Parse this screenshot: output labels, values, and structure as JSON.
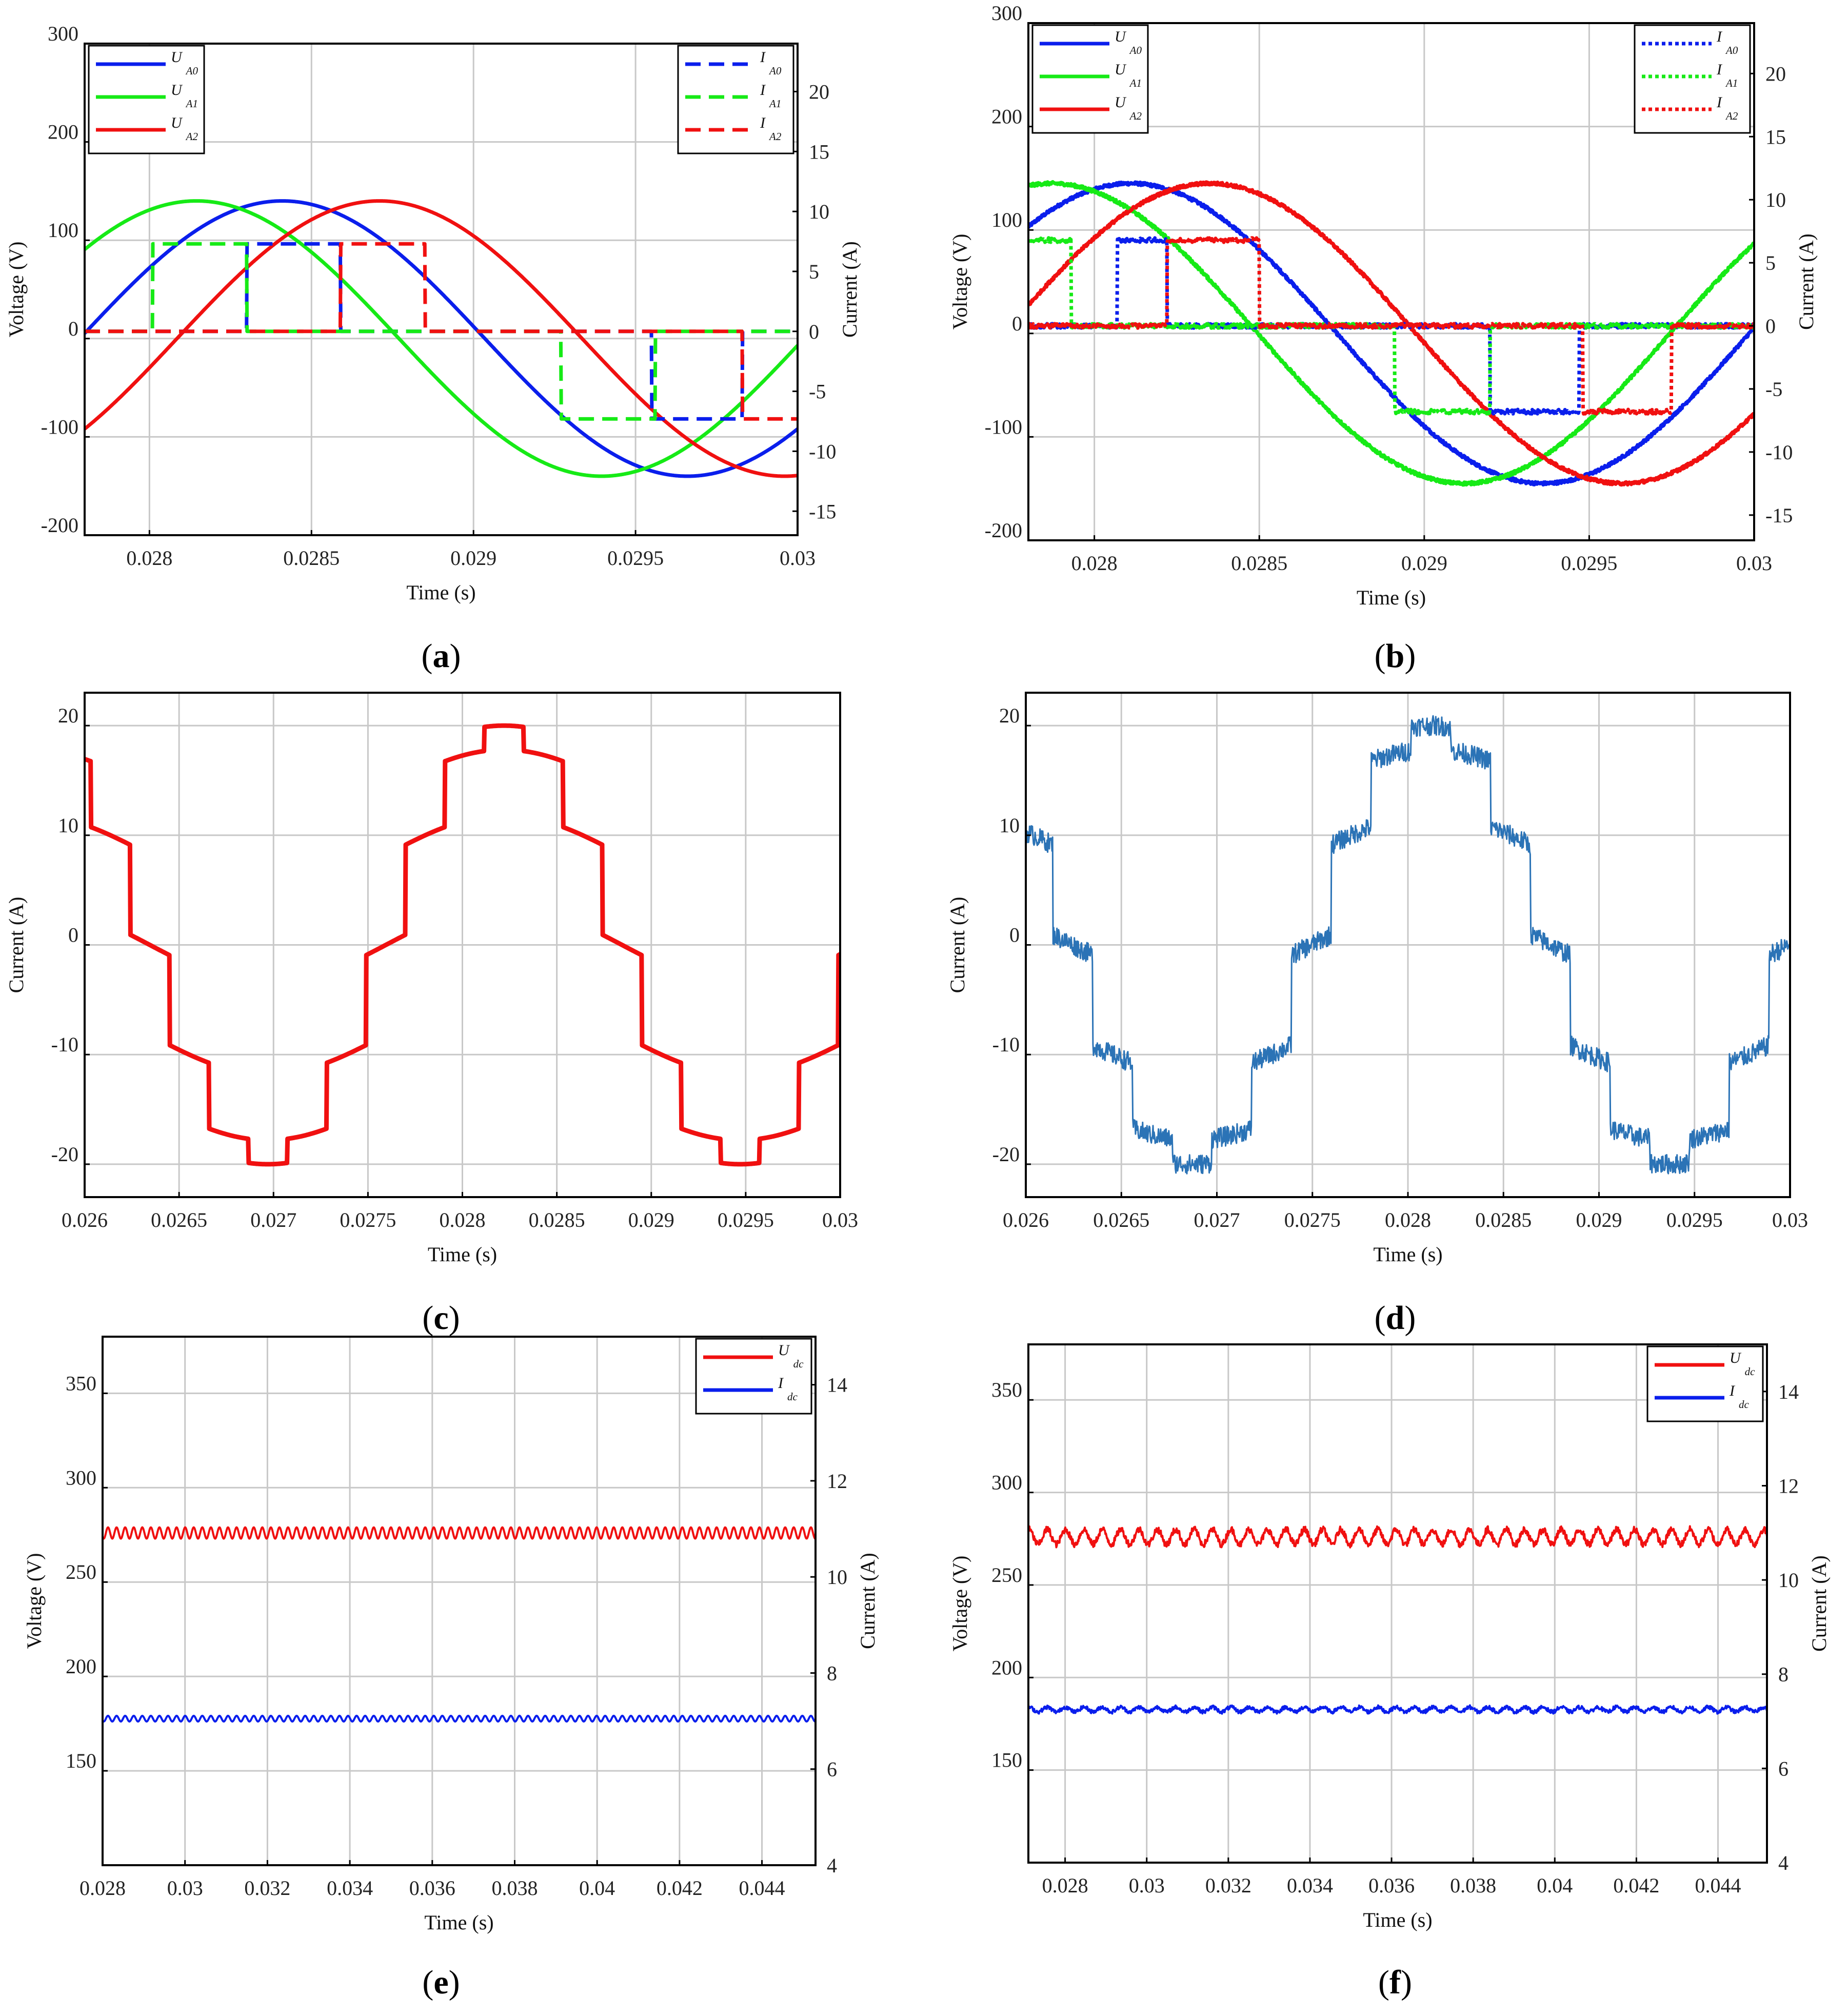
{
  "captions": [
    "a",
    "b",
    "c",
    "d",
    "e",
    "f"
  ],
  "colors": {
    "blue": "#0a1eec",
    "green": "#16ea16",
    "red": "#f01010",
    "steel": "#2b73b6",
    "grid": "#c8c8c8"
  },
  "chart_data": [
    {
      "panel": "a",
      "type": "line",
      "xlabel": "Time (s)",
      "ylabel": "Voltage (V)",
      "y2label": "Current (A)",
      "xlim": [
        0.0278,
        0.03
      ],
      "ylim": [
        -200,
        300
      ],
      "y2lim": [
        -17,
        24
      ],
      "xticks": [
        0.028,
        0.0285,
        0.029,
        0.0295,
        0.03
      ],
      "xtick_labels": [
        "0.028",
        "0.0285",
        "0.029",
        "0.0295",
        "0.03"
      ],
      "yticks": [
        -200,
        -100,
        0,
        100,
        200,
        300
      ],
      "ytick_labels": [
        "-200",
        "-100",
        "0",
        "100",
        "200",
        "300"
      ],
      "y2ticks": [
        -15,
        -10,
        -5,
        0,
        5,
        10,
        15,
        20
      ],
      "y2tick_labels": [
        "-15",
        "-10",
        "-5",
        "0",
        "5",
        "10",
        "15",
        "20"
      ],
      "legend_left": [
        {
          "sym": "U",
          "sub": "A0",
          "color": "blue",
          "style": "solid"
        },
        {
          "sym": "U",
          "sub": "A1",
          "color": "green",
          "style": "solid"
        },
        {
          "sym": "U",
          "sub": "A2",
          "color": "red",
          "style": "solid"
        }
      ],
      "legend_right": [
        {
          "sym": "I",
          "sub": "A0",
          "color": "blue",
          "style": "dashed"
        },
        {
          "sym": "I",
          "sub": "A1",
          "color": "green",
          "style": "dashed"
        },
        {
          "sym": "I",
          "sub": "A2",
          "color": "red",
          "style": "dashed"
        }
      ],
      "series": [
        {
          "name": "UA0",
          "axis": "left",
          "color": "blue",
          "style": "solid",
          "kind": "sine",
          "amplitude": 140,
          "period": 0.0025,
          "peak_at": 0.02841
        },
        {
          "name": "UA1",
          "axis": "left",
          "color": "green",
          "style": "solid",
          "kind": "sine",
          "amplitude": 140,
          "period": 0.0025,
          "peak_at": 0.028145
        },
        {
          "name": "UA2",
          "axis": "left",
          "color": "red",
          "style": "solid",
          "kind": "sine",
          "amplitude": 140,
          "period": 0.0025,
          "peak_at": 0.02871
        },
        {
          "name": "IA0",
          "axis": "right",
          "color": "blue",
          "style": "dashed",
          "kind": "pulse",
          "level": 7.3,
          "pos": [
            [
              0.0283,
              0.02859
            ]
          ],
          "neg": [
            [
              0.02955,
              0.02983
            ]
          ]
        },
        {
          "name": "IA1",
          "axis": "right",
          "color": "green",
          "style": "dashed",
          "kind": "pulse",
          "level": 7.3,
          "pos": [
            [
              0.02801,
              0.0283
            ]
          ],
          "neg": [
            [
              0.02927,
              0.02956
            ]
          ]
        },
        {
          "name": "IA2",
          "axis": "right",
          "color": "red",
          "style": "dashed",
          "kind": "pulse",
          "level": 7.3,
          "pos": [
            [
              0.02859,
              0.02885
            ]
          ],
          "neg": [
            [
              0.02983,
              0.03
            ]
          ]
        }
      ]
    },
    {
      "panel": "b",
      "type": "line",
      "xlabel": "Time (s)",
      "ylabel": "Voltage (V)",
      "y2label": "Current (A)",
      "xlim": [
        0.0278,
        0.03
      ],
      "ylim": [
        -200,
        300
      ],
      "y2lim": [
        -17,
        24
      ],
      "xticks": [
        0.028,
        0.0285,
        0.029,
        0.0295,
        0.03
      ],
      "xtick_labels": [
        "0.028",
        "0.0285",
        "0.029",
        "0.0295",
        "0.03"
      ],
      "yticks": [
        -200,
        -100,
        0,
        100,
        200,
        300
      ],
      "ytick_labels": [
        "-200",
        "-100",
        "0",
        "100",
        "200",
        "300"
      ],
      "y2ticks": [
        -15,
        -10,
        -5,
        0,
        5,
        10,
        15,
        20
      ],
      "y2tick_labels": [
        "-15",
        "-10",
        "-5",
        "0",
        "5",
        "10",
        "15",
        "20"
      ],
      "legend_left": [
        {
          "sym": "U",
          "sub": "A0",
          "color": "blue",
          "style": "solid"
        },
        {
          "sym": "U",
          "sub": "A1",
          "color": "green",
          "style": "solid"
        },
        {
          "sym": "U",
          "sub": "A2",
          "color": "red",
          "style": "solid"
        }
      ],
      "legend_right": [
        {
          "sym": "I",
          "sub": "A0",
          "color": "blue",
          "style": "dotted"
        },
        {
          "sym": "I",
          "sub": "A1",
          "color": "green",
          "style": "dotted"
        },
        {
          "sym": "I",
          "sub": "A2",
          "color": "red",
          "style": "dotted"
        }
      ],
      "series": [
        {
          "name": "UA0",
          "axis": "left",
          "color": "blue",
          "style": "solid",
          "kind": "sine",
          "amplitude": 145,
          "period": 0.0025,
          "peak_at": 0.02811
        },
        {
          "name": "UA1",
          "axis": "left",
          "color": "green",
          "style": "solid",
          "kind": "sine",
          "amplitude": 145,
          "period": 0.0025,
          "peak_at": 0.02787
        },
        {
          "name": "UA2",
          "axis": "left",
          "color": "red",
          "style": "solid",
          "kind": "sine",
          "amplitude": 145,
          "period": 0.0025,
          "peak_at": 0.02835
        },
        {
          "name": "IA0",
          "axis": "right",
          "color": "blue",
          "style": "dotted",
          "kind": "pulse",
          "level": 6.8,
          "pos": [
            [
              0.02807,
              0.02822
            ]
          ],
          "neg": [
            [
              0.0292,
              0.02947
            ]
          ]
        },
        {
          "name": "IA1",
          "axis": "right",
          "color": "green",
          "style": "dotted",
          "kind": "pulse",
          "level": 6.8,
          "pos": [
            [
              0.0278,
              0.02793
            ]
          ],
          "neg": [
            [
              0.02891,
              0.0292
            ]
          ]
        },
        {
          "name": "IA2",
          "axis": "right",
          "color": "red",
          "style": "dotted",
          "kind": "pulse",
          "level": 6.8,
          "pos": [
            [
              0.02822,
              0.0285
            ]
          ],
          "neg": [
            [
              0.02948,
              0.02975
            ]
          ]
        }
      ]
    },
    {
      "panel": "c",
      "type": "line",
      "xlabel": "Time (s)",
      "ylabel": "Current (A)",
      "xlim": [
        0.026,
        0.03
      ],
      "ylim": [
        -23,
        23
      ],
      "xticks": [
        0.026,
        0.0265,
        0.027,
        0.0275,
        0.028,
        0.0285,
        0.029,
        0.0295,
        0.03
      ],
      "xtick_labels": [
        "0.026",
        "0.0265",
        "0.027",
        "0.0275",
        "0.028",
        "0.0285",
        "0.029",
        "0.0295",
        "0.03"
      ],
      "yticks": [
        -20,
        -10,
        0,
        10,
        20
      ],
      "ytick_labels": [
        "-20",
        "-10",
        "0",
        "10",
        "20"
      ],
      "series": [
        {
          "name": "I",
          "color": "red",
          "style": "solid",
          "kind": "stepsine",
          "amplitude": 20,
          "period": 0.0025,
          "peak_at": 0.02822,
          "steps": 12
        }
      ]
    },
    {
      "panel": "d",
      "type": "line",
      "xlabel": "Time (s)",
      "ylabel": "Current (A)",
      "xlim": [
        0.026,
        0.03
      ],
      "ylim": [
        -23,
        23
      ],
      "xticks": [
        0.026,
        0.0265,
        0.027,
        0.0275,
        0.028,
        0.0285,
        0.029,
        0.0295,
        0.03
      ],
      "xtick_labels": [
        "0.026",
        "0.0265",
        "0.027",
        "0.0275",
        "0.028",
        "0.0285",
        "0.029",
        "0.0295",
        "0.03"
      ],
      "yticks": [
        -20,
        -10,
        0,
        10,
        20
      ],
      "ytick_labels": [
        "-20",
        "-10",
        "0",
        "10",
        "20"
      ],
      "series": [
        {
          "name": "I",
          "color": "steel",
          "style": "solid",
          "kind": "stepsine",
          "amplitude": 20,
          "period": 0.0025,
          "peak_at": 0.02812,
          "steps": 12,
          "noise": 0.9
        }
      ]
    },
    {
      "panel": "e",
      "type": "line",
      "xlabel": "Time (s)",
      "ylabel": "Voltage (V)",
      "y2label": "Current (A)",
      "xlim": [
        0.028,
        0.0453
      ],
      "ylim": [
        100,
        380
      ],
      "y2lim": [
        4,
        15
      ],
      "xticks": [
        0.028,
        0.03,
        0.032,
        0.034,
        0.036,
        0.038,
        0.04,
        0.042,
        0.044
      ],
      "xtick_labels": [
        "0.028",
        "0.03",
        "0.032",
        "0.034",
        "0.036",
        "0.038",
        "0.04",
        "0.042",
        "0.044"
      ],
      "yticks": [
        150,
        200,
        250,
        300,
        350
      ],
      "ytick_labels": [
        "150",
        "200",
        "250",
        "300",
        "350"
      ],
      "y2ticks": [
        4,
        6,
        8,
        10,
        12,
        14
      ],
      "y2tick_labels": [
        "4",
        "6",
        "8",
        "10",
        "12",
        "14"
      ],
      "legend_right": [
        {
          "sym": "U",
          "sub": "dc",
          "color": "red",
          "style": "solid"
        },
        {
          "sym": "I",
          "sub": "dc",
          "color": "blue",
          "style": "solid"
        }
      ],
      "series": [
        {
          "name": "Udc",
          "axis": "left",
          "color": "red",
          "style": "solid",
          "kind": "ripple",
          "level": 276,
          "ripple": 3,
          "period": 0.000208
        },
        {
          "name": "Idc",
          "axis": "right",
          "color": "blue",
          "style": "solid",
          "kind": "ripple",
          "level": 7.05,
          "ripple": 0.06,
          "period": 0.000208
        }
      ]
    },
    {
      "panel": "f",
      "type": "line",
      "xlabel": "Time (s)",
      "ylabel": "Voltage (V)",
      "y2label": "Current (A)",
      "xlim": [
        0.0271,
        0.0452
      ],
      "ylim": [
        100,
        380
      ],
      "y2lim": [
        4,
        15
      ],
      "xticks": [
        0.028,
        0.03,
        0.032,
        0.034,
        0.036,
        0.038,
        0.04,
        0.042,
        0.044
      ],
      "xtick_labels": [
        "0.028",
        "0.03",
        "0.032",
        "0.034",
        "0.036",
        "0.038",
        "0.04",
        "0.042",
        "0.044"
      ],
      "yticks": [
        150,
        200,
        250,
        300,
        350
      ],
      "ytick_labels": [
        "150",
        "200",
        "250",
        "300",
        "350"
      ],
      "y2ticks": [
        4,
        6,
        8,
        10,
        12,
        14
      ],
      "y2tick_labels": [
        "4",
        "6",
        "8",
        "10",
        "12",
        "14"
      ],
      "legend_right": [
        {
          "sym": "U",
          "sub": "dc",
          "color": "red",
          "style": "solid"
        },
        {
          "sym": "I",
          "sub": "dc",
          "color": "blue",
          "style": "solid"
        }
      ],
      "series": [
        {
          "name": "Udc",
          "axis": "left",
          "color": "red",
          "style": "solid",
          "kind": "ripple",
          "level": 276,
          "ripple": 4,
          "period": 0.00045,
          "noise": 1.8
        },
        {
          "name": "Idc",
          "axis": "right",
          "color": "blue",
          "style": "solid",
          "kind": "ripple",
          "level": 7.25,
          "ripple": 0.05,
          "period": 0.00045,
          "noise": 0.04
        }
      ]
    }
  ]
}
